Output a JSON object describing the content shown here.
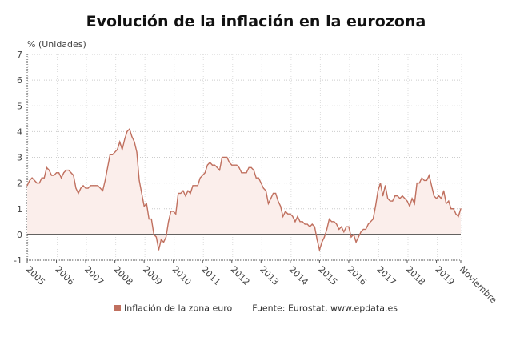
{
  "chart_data": {
    "type": "area",
    "title": "Evolución de la inflación en la eurozona",
    "ylabel": "% (Unidades)",
    "ylim": [
      -1,
      7
    ],
    "yticks": [
      -1,
      0,
      1,
      2,
      3,
      4,
      5,
      6,
      7
    ],
    "x_start": "2005-01",
    "x_end": "2019-11",
    "xtick_labels": [
      "2005",
      "2006",
      "2007",
      "2008",
      "2009",
      "2010",
      "2011",
      "2012",
      "2013",
      "2014",
      "2015",
      "2016",
      "2017",
      "2018",
      "2019",
      "Noviembre"
    ],
    "grid": true,
    "legend_placement": "bottom",
    "colors": {
      "line": "#c0705f",
      "fill": "#fbeeeb",
      "zero_line": "#333333"
    },
    "series": [
      {
        "name": "Inflación de la zona euro",
        "values": [
          1.9,
          2.1,
          2.2,
          2.1,
          2.0,
          2.0,
          2.2,
          2.2,
          2.6,
          2.5,
          2.3,
          2.3,
          2.4,
          2.4,
          2.2,
          2.4,
          2.5,
          2.5,
          2.4,
          2.3,
          1.8,
          1.6,
          1.8,
          1.9,
          1.8,
          1.8,
          1.9,
          1.9,
          1.9,
          1.9,
          1.8,
          1.7,
          2.1,
          2.6,
          3.1,
          3.1,
          3.2,
          3.3,
          3.6,
          3.3,
          3.7,
          4.0,
          4.1,
          3.8,
          3.6,
          3.2,
          2.1,
          1.6,
          1.1,
          1.2,
          0.6,
          0.6,
          0.0,
          -0.1,
          -0.6,
          -0.2,
          -0.3,
          -0.1,
          0.5,
          0.9,
          0.9,
          0.8,
          1.6,
          1.6,
          1.7,
          1.5,
          1.7,
          1.6,
          1.9,
          1.9,
          1.9,
          2.2,
          2.3,
          2.4,
          2.7,
          2.8,
          2.7,
          2.7,
          2.6,
          2.5,
          3.0,
          3.0,
          3.0,
          2.8,
          2.7,
          2.7,
          2.7,
          2.6,
          2.4,
          2.4,
          2.4,
          2.6,
          2.6,
          2.5,
          2.2,
          2.2,
          2.0,
          1.8,
          1.7,
          1.2,
          1.4,
          1.6,
          1.6,
          1.3,
          1.1,
          0.7,
          0.9,
          0.8,
          0.8,
          0.7,
          0.5,
          0.7,
          0.5,
          0.5,
          0.4,
          0.4,
          0.3,
          0.4,
          0.3,
          -0.2,
          -0.6,
          -0.3,
          -0.1,
          0.2,
          0.6,
          0.5,
          0.5,
          0.4,
          0.2,
          0.3,
          0.1,
          0.3,
          0.3,
          -0.1,
          0.0,
          -0.3,
          -0.1,
          0.1,
          0.2,
          0.2,
          0.4,
          0.5,
          0.6,
          1.1,
          1.7,
          2.0,
          1.5,
          1.9,
          1.4,
          1.3,
          1.3,
          1.5,
          1.5,
          1.4,
          1.5,
          1.4,
          1.3,
          1.1,
          1.4,
          1.2,
          2.0,
          2.0,
          2.2,
          2.1,
          2.1,
          2.3,
          1.9,
          1.5,
          1.4,
          1.5,
          1.4,
          1.7,
          1.2,
          1.3,
          1.0,
          1.0,
          0.8,
          0.7,
          1.0
        ]
      }
    ],
    "source": "Fuente: Eurostat, www.epdata.es"
  }
}
